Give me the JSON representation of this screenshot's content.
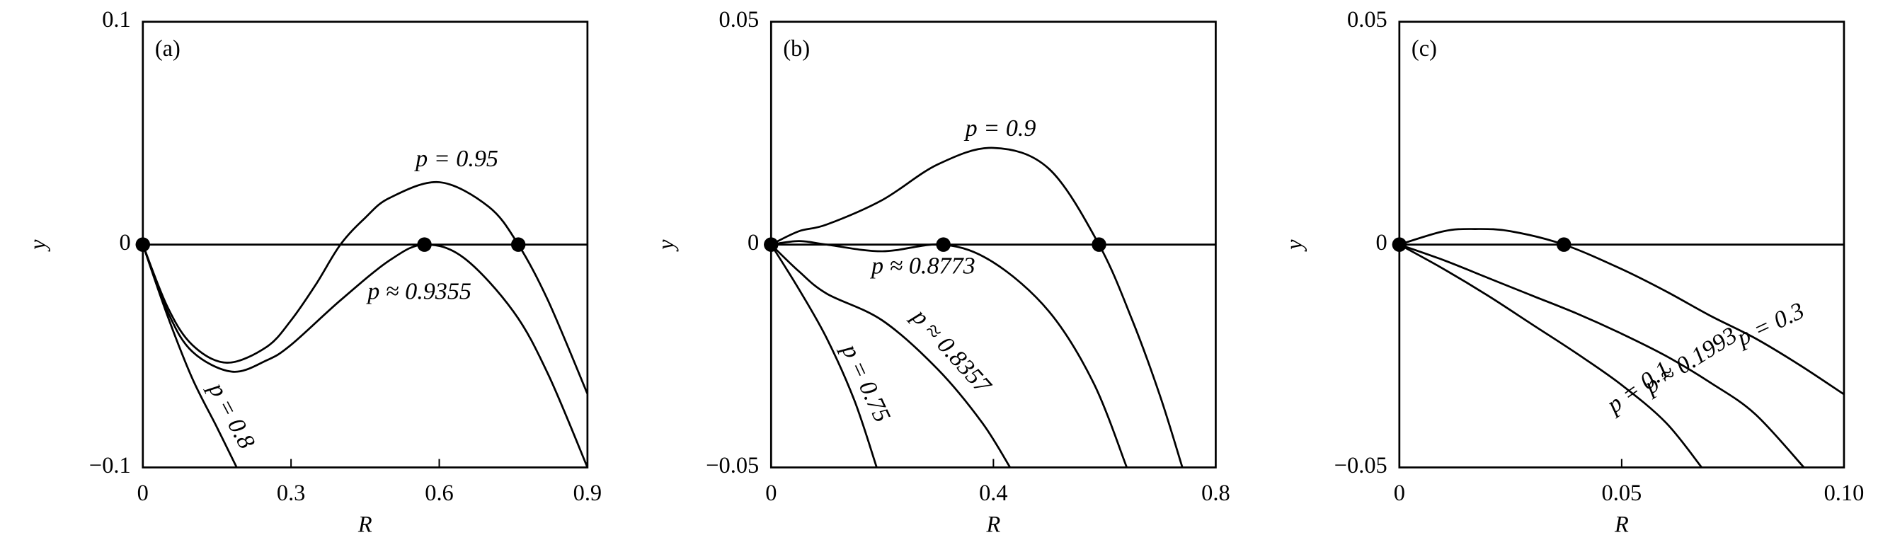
{
  "chart_data": [
    {
      "type": "line",
      "title": "(a)",
      "x_label": "R",
      "y_label": "y",
      "xlim": [
        0,
        0.9
      ],
      "ylim": [
        -0.1,
        0.1
      ],
      "xticks": [
        0,
        0.3,
        0.6,
        0.9
      ],
      "yticks": [
        {
          "value": -0.1,
          "label": "−0.1"
        },
        0,
        0.1
      ],
      "series": [
        {
          "name": "p = 0.95",
          "color": "#000000",
          "x": [
            0,
            0.05,
            0.1,
            0.17,
            0.25,
            0.3,
            0.35,
            0.4,
            0.45,
            0.5,
            0.6,
            0.7,
            0.76,
            0.82,
            0.9
          ],
          "values": [
            0,
            -0.028,
            -0.045,
            -0.053,
            -0.046,
            -0.034,
            -0.018,
            0,
            0.012,
            0.021,
            0.028,
            0.017,
            0,
            -0.025,
            -0.067
          ]
        },
        {
          "name": "p ≈ 0.9355",
          "color": "#000000",
          "x": [
            0,
            0.05,
            0.1,
            0.18,
            0.25,
            0.3,
            0.4,
            0.5,
            0.57,
            0.65,
            0.75,
            0.82,
            0.9
          ],
          "values": [
            0,
            -0.03,
            -0.048,
            -0.057,
            -0.052,
            -0.045,
            -0.025,
            -0.007,
            0,
            -0.006,
            -0.03,
            -0.058,
            -0.1
          ]
        },
        {
          "name": "p = 0.8",
          "color": "#000000",
          "x": [
            0,
            0.05,
            0.1,
            0.15,
            0.19
          ],
          "values": [
            0,
            -0.032,
            -0.06,
            -0.082,
            -0.1
          ]
        },
        {
          "color": "#000000",
          "x": [
            0,
            0.9
          ],
          "values": [
            0,
            0
          ]
        }
      ],
      "points": {
        "color": "#000000",
        "x": [
          0,
          0.57,
          0.76
        ],
        "values": [
          0,
          0,
          0
        ]
      }
    },
    {
      "type": "line",
      "title": "(b)",
      "x_label": "R",
      "y_label": "y",
      "xlim": [
        0,
        0.8
      ],
      "ylim": [
        -0.05,
        0.05
      ],
      "xticks": [
        0,
        0.4,
        0.8
      ],
      "yticks": [
        {
          "value": -0.05,
          "label": "−0.05"
        },
        0,
        0.05
      ],
      "series": [
        {
          "name": "p = 0.9",
          "color": "#000000",
          "x": [
            0,
            0.05,
            0.1,
            0.2,
            0.3,
            0.4,
            0.5,
            0.59,
            0.65,
            0.7,
            0.74
          ],
          "values": [
            0,
            0.003,
            0.0045,
            0.01,
            0.018,
            0.0217,
            0.017,
            0,
            -0.017,
            -0.034,
            -0.05
          ]
        },
        {
          "name": "p ≈ 0.8773",
          "color": "#000000",
          "x": [
            0,
            0.05,
            0.1,
            0.2,
            0.31,
            0.4,
            0.5,
            0.58,
            0.64
          ],
          "values": [
            0,
            0.0008,
            0,
            -0.0015,
            0,
            -0.004,
            -0.015,
            -0.031,
            -0.05
          ]
        },
        {
          "name": "p ≈ 0.8357",
          "color": "#000000",
          "x": [
            0,
            0.05,
            0.1,
            0.2,
            0.3,
            0.38,
            0.43
          ],
          "values": [
            0,
            -0.006,
            -0.011,
            -0.017,
            -0.028,
            -0.04,
            -0.05
          ]
        },
        {
          "name": "p = 0.75",
          "color": "#000000",
          "x": [
            0,
            0.05,
            0.1,
            0.15,
            0.19
          ],
          "values": [
            0,
            -0.01,
            -0.021,
            -0.035,
            -0.05
          ]
        },
        {
          "color": "#000000",
          "x": [
            0,
            0.8
          ],
          "values": [
            0,
            0
          ]
        }
      ],
      "points": {
        "color": "#000000",
        "x": [
          0,
          0.31,
          0.59
        ],
        "values": [
          0,
          0,
          0
        ]
      }
    },
    {
      "type": "line",
      "title": "(c)",
      "x_label": "R",
      "y_label": "y",
      "xlim": [
        0,
        0.1
      ],
      "ylim": [
        -0.05,
        0.05
      ],
      "xticks": [
        0,
        0.05,
        {
          "value": 0.1,
          "label": "0.10"
        }
      ],
      "yticks": [
        {
          "value": -0.05,
          "label": "−0.05"
        },
        0,
        0.05
      ],
      "series": [
        {
          "name": "p = 0.3",
          "color": "#000000",
          "x": [
            0,
            0.01,
            0.017,
            0.025,
            0.037,
            0.05,
            0.06,
            0.07,
            0.08,
            0.09,
            0.1
          ],
          "values": [
            0,
            0.003,
            0.0035,
            0.003,
            0,
            -0.0055,
            -0.0105,
            -0.016,
            -0.021,
            -0.027,
            -0.0336
          ]
        },
        {
          "name": "p ≈ 0.1993",
          "color": "#000000",
          "x": [
            0,
            0.01,
            0.02,
            0.03,
            0.04,
            0.05,
            0.06,
            0.07,
            0.08,
            0.091
          ],
          "values": [
            0,
            -0.0035,
            -0.0075,
            -0.0115,
            -0.0155,
            -0.02,
            -0.025,
            -0.031,
            -0.038,
            -0.05
          ]
        },
        {
          "name": "p = 0.1",
          "color": "#000000",
          "x": [
            0,
            0.01,
            0.02,
            0.03,
            0.04,
            0.05,
            0.06,
            0.068
          ],
          "values": [
            0,
            -0.0055,
            -0.0115,
            -0.018,
            -0.0245,
            -0.0315,
            -0.04,
            -0.05
          ]
        },
        {
          "color": "#000000",
          "x": [
            0,
            0.1
          ],
          "values": [
            0,
            0
          ]
        }
      ],
      "points": {
        "color": "#000000",
        "x": [
          0,
          0.037
        ],
        "values": [
          0,
          0
        ]
      }
    }
  ]
}
